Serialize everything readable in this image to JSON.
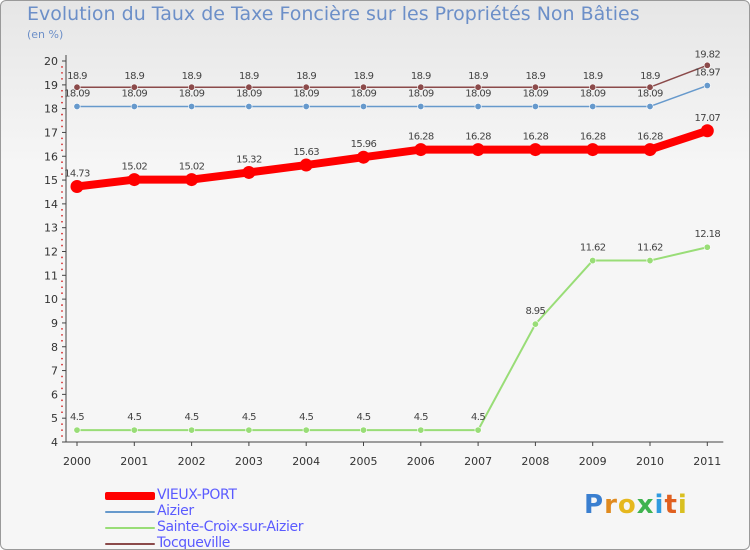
{
  "title": "Evolution du Taux de Taxe Foncière sur les Propriétés Non Bâties",
  "unit": "(en %)",
  "logo": {
    "text": "Proxiti",
    "letters": [
      "P",
      "r",
      "o",
      "x",
      "i",
      "t",
      "i"
    ],
    "colors": [
      "#3a7fd0",
      "#e08a1e",
      "#e6b81e",
      "#3fb34f",
      "#2f9be0",
      "#e06020",
      "#d9c020"
    ]
  },
  "chart_data": {
    "type": "line",
    "title": "Evolution du Taux de Taxe Foncière sur les Propriétés Non Bâties",
    "ylabel": "(en %)",
    "x": [
      "2000",
      "2001",
      "2002",
      "2003",
      "2004",
      "2005",
      "2006",
      "2007",
      "2008",
      "2009",
      "2010",
      "2011"
    ],
    "ylim": [
      4,
      20
    ],
    "yticks": [
      4,
      5,
      6,
      7,
      8,
      9,
      10,
      11,
      12,
      13,
      14,
      15,
      16,
      17,
      18,
      19,
      20
    ],
    "grid": false,
    "series": [
      {
        "name": "VIEUX-PORT",
        "color": "#ff0000",
        "width": 8,
        "values": [
          14.73,
          15.02,
          15.02,
          15.32,
          15.63,
          15.96,
          16.28,
          16.28,
          16.28,
          16.28,
          16.28,
          17.07
        ],
        "labels": [
          "14.73",
          "15.02",
          "15.02",
          "15.32",
          "15.63",
          "15.96",
          "16.28",
          "16.28",
          "16.28",
          "16.28",
          "16.28",
          "17.07"
        ]
      },
      {
        "name": "Aizier",
        "color": "#6699cc",
        "width": 1.5,
        "values": [
          18.09,
          18.09,
          18.09,
          18.09,
          18.09,
          18.09,
          18.09,
          18.09,
          18.09,
          18.09,
          18.09,
          18.97
        ],
        "labels": [
          "18.09",
          "18.09",
          "18.09",
          "18.09",
          "18.09",
          "18.09",
          "18.09",
          "18.09",
          "18.09",
          "18.09",
          "18.09",
          "18.97"
        ]
      },
      {
        "name": "Sainte-Croix-sur-Aizier",
        "color": "#99dd77",
        "width": 2,
        "values": [
          4.5,
          4.5,
          4.5,
          4.5,
          4.5,
          4.5,
          4.5,
          4.5,
          8.95,
          11.62,
          11.62,
          12.18
        ],
        "labels": [
          "4.5",
          "4.5",
          "4.5",
          "4.5",
          "4.5",
          "4.5",
          "4.5",
          "4.5",
          "8.95",
          "11.62",
          "11.62",
          "12.18"
        ]
      },
      {
        "name": "Tocqueville",
        "color": "#8b4a4a",
        "width": 1.5,
        "values": [
          18.9,
          18.9,
          18.9,
          18.9,
          18.9,
          18.9,
          18.9,
          18.9,
          18.9,
          18.9,
          18.9,
          19.82
        ],
        "labels": [
          "18.9",
          "18.9",
          "18.9",
          "18.9",
          "18.9",
          "18.9",
          "18.9",
          "18.9",
          "18.9",
          "18.9",
          "18.9",
          "19.82"
        ]
      }
    ]
  }
}
